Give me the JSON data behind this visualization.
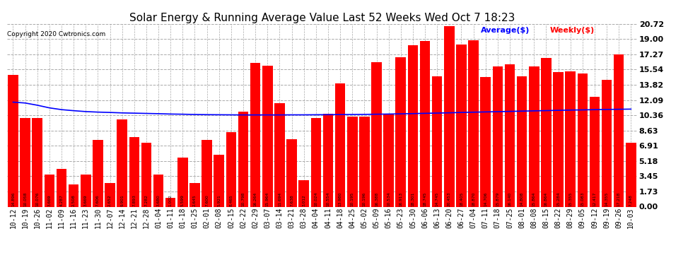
{
  "title": "Solar Energy & Running Average Value Last 52 Weeks Wed Oct 7 18:23",
  "copyright": "Copyright 2020 Cwtronics.com",
  "bar_color": "#ff0000",
  "avg_line_color": "#0000ff",
  "background_color": "#ffffff",
  "plot_bg_color": "#ffffff",
  "grid_color": "#aaaaaa",
  "legend_avg": "Average($)",
  "legend_weekly": "Weekly($)",
  "yticks": [
    0.0,
    1.73,
    3.45,
    5.18,
    6.91,
    8.63,
    10.36,
    12.09,
    13.82,
    15.54,
    17.27,
    19.0,
    20.72
  ],
  "categories": [
    "10-12",
    "10-19",
    "10-26",
    "11-02",
    "11-09",
    "11-16",
    "11-23",
    "11-30",
    "12-07",
    "12-14",
    "12-21",
    "12-28",
    "01-04",
    "01-11",
    "01-18",
    "01-25",
    "02-01",
    "02-08",
    "02-15",
    "02-22",
    "02-29",
    "03-07",
    "03-14",
    "03-21",
    "03-28",
    "04-04",
    "04-11",
    "04-18",
    "04-25",
    "05-02",
    "05-09",
    "05-16",
    "05-23",
    "05-30",
    "06-06",
    "06-13",
    "06-20",
    "06-27",
    "07-04",
    "07-11",
    "07-18",
    "07-25",
    "08-01",
    "08-08",
    "08-15",
    "08-22",
    "08-29",
    "09-05",
    "09-12",
    "09-19",
    "09-26",
    "10-03"
  ],
  "weekly_values": [
    14.896,
    10.058,
    10.076,
    3.669,
    4.287,
    2.508,
    3.669,
    7.606,
    2.652,
    9.901,
    7.893,
    7.282,
    3.68,
    1.002,
    5.599,
    2.645,
    7.6,
    5.921,
    8.465,
    10.798,
    16.264,
    15.964,
    11.694,
    7.638,
    3.012,
    10.024,
    10.554,
    13.98,
    10.195,
    10.196,
    16.388,
    10.534,
    16.913,
    18.301,
    18.745,
    14.745,
    20.453,
    18.405,
    18.87,
    14.706,
    15.879,
    16.14,
    14.808,
    15.864,
    16.864,
    15.284,
    15.355,
    15.083,
    12.417,
    14.355,
    17.218,
    7.248
  ],
  "avg_values": [
    11.85,
    11.75,
    11.5,
    11.2,
    11.0,
    10.88,
    10.78,
    10.72,
    10.68,
    10.63,
    10.6,
    10.57,
    10.54,
    10.5,
    10.48,
    10.45,
    10.43,
    10.42,
    10.41,
    10.4,
    10.4,
    10.4,
    10.4,
    10.41,
    10.41,
    10.42,
    10.43,
    10.44,
    10.45,
    10.46,
    10.48,
    10.5,
    10.52,
    10.55,
    10.58,
    10.61,
    10.64,
    10.68,
    10.71,
    10.74,
    10.77,
    10.8,
    10.83,
    10.86,
    10.89,
    10.92,
    10.95,
    10.97,
    11.0,
    11.02,
    11.04,
    11.06
  ],
  "bar_width": 0.85,
  "title_fontsize": 11,
  "tick_fontsize": 7,
  "ytick_fontsize": 8,
  "value_fontsize": 4.2
}
